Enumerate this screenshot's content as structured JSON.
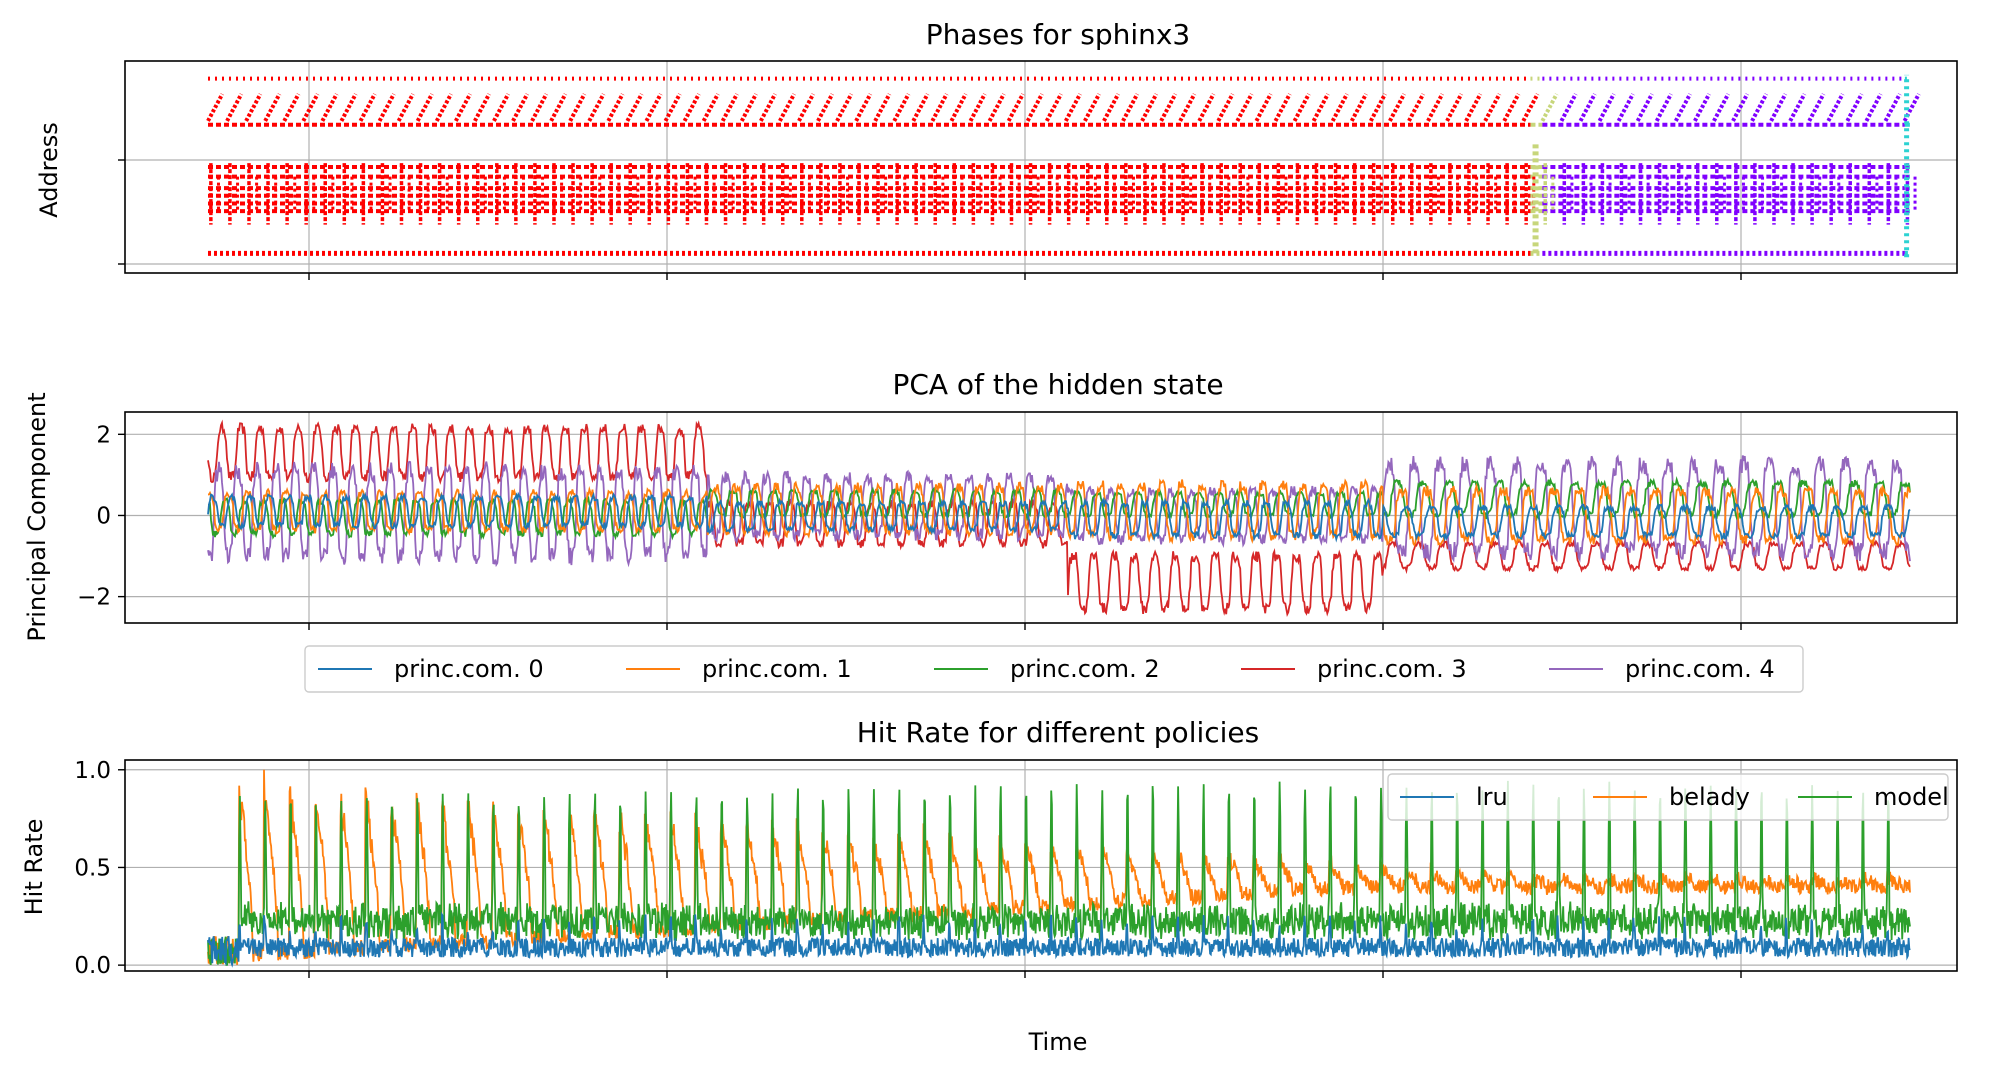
{
  "figure": {
    "xlabel": "Time"
  },
  "chart_data": [
    {
      "type": "scatter",
      "title": "Phases for sphinx3",
      "xlabel": "",
      "ylabel": "Address",
      "grid": true,
      "tick_labels_shown": false,
      "x_range": [
        0,
        1
      ],
      "phases": [
        {
          "color": "#ff0000",
          "x_range": [
            0.0,
            0.777
          ]
        },
        {
          "color": "#c7d67b",
          "x_range": [
            0.777,
            0.784
          ]
        },
        {
          "color": "#8000ff",
          "x_range": [
            0.784,
            0.997
          ]
        },
        {
          "color": "#2cd2d2",
          "x_range": [
            0.997,
            1.0
          ]
        }
      ],
      "address_bands": [
        0.05,
        0.27,
        0.31,
        0.35,
        0.39,
        0.45,
        0.5,
        0.72,
        0.96
      ]
    },
    {
      "type": "line",
      "title": "PCA of the hidden state",
      "xlabel": "",
      "ylabel": "Principal Component",
      "ylim": [
        -2.65,
        2.55
      ],
      "yticks": [
        "2",
        "0",
        "−2"
      ],
      "ytick_values": [
        2,
        0,
        -2
      ],
      "grid": true,
      "legend": {
        "placement": "below",
        "ncol": 5
      },
      "series": [
        {
          "name": "princ.com. 0",
          "color": "#1f77b4"
        },
        {
          "name": "princ.com. 1",
          "color": "#ff7f0e"
        },
        {
          "name": "princ.com. 2",
          "color": "#2ca02c"
        },
        {
          "name": "princ.com. 3",
          "color": "#d62728"
        },
        {
          "name": "princ.com. 4",
          "color": "#9467bd"
        }
      ],
      "segments": [
        {
          "x_range": [
            0.0,
            0.293
          ],
          "period": 0.0112,
          "values": {
            "princ.com. 0": [
              -0.25,
              0.45
            ],
            "princ.com. 1": [
              -0.35,
              0.55
            ],
            "princ.com. 2": [
              -0.45,
              0.35
            ],
            "princ.com. 3": [
              0.95,
              2.15
            ],
            "princ.com. 4": [
              -1.0,
              1.1
            ]
          }
        },
        {
          "x_range": [
            0.293,
            0.505
          ],
          "period": 0.0119,
          "values": {
            "princ.com. 0": [
              -0.35,
              0.3
            ],
            "princ.com. 1": [
              -0.4,
              0.7
            ],
            "princ.com. 2": [
              0.0,
              0.6
            ],
            "princ.com. 3": [
              -0.7,
              0.3
            ],
            "princ.com. 4": [
              -0.5,
              0.95
            ]
          }
        },
        {
          "x_range": [
            0.505,
            0.69
          ],
          "period": 0.0119,
          "values": {
            "princ.com. 0": [
              -0.5,
              0.3
            ],
            "princ.com. 1": [
              -0.5,
              0.75
            ],
            "princ.com. 2": [
              0.0,
              0.55
            ],
            "princ.com. 3": [
              -2.3,
              -1.0
            ],
            "princ.com. 4": [
              -0.6,
              0.6
            ]
          }
        },
        {
          "x_range": [
            0.69,
            1.0
          ],
          "period": 0.0149,
          "values": {
            "princ.com. 0": [
              -0.5,
              0.2
            ],
            "princ.com. 1": [
              -0.6,
              0.6
            ],
            "princ.com. 2": [
              0.0,
              0.8
            ],
            "princ.com. 3": [
              -1.3,
              -0.7
            ],
            "princ.com. 4": [
              -0.9,
              1.25
            ]
          }
        }
      ]
    },
    {
      "type": "line",
      "title": "Hit Rate for different policies",
      "xlabel": "",
      "ylabel": "Hit Rate",
      "ylim": [
        -0.03,
        1.05
      ],
      "yticks": [
        "0.0",
        "0.5",
        "1.0"
      ],
      "ytick_values": [
        0.0,
        0.5,
        1.0
      ],
      "grid": true,
      "legend": {
        "placement": "upper right",
        "ncol": 3
      },
      "series": [
        {
          "name": "lru",
          "color": "#1f77b4"
        },
        {
          "name": "belady",
          "color": "#ff7f0e"
        },
        {
          "name": "model",
          "color": "#2ca02c"
        }
      ],
      "spikes": {
        "period": 0.0149,
        "start": 0.018,
        "end": 1.0
      },
      "values": {
        "lru": {
          "base": [
            0.04,
            0.14
          ],
          "spike": 0.2
        },
        "belady": {
          "start_peak": 1.0,
          "end_peak": 0.45,
          "floor": [
            0.05,
            0.4
          ]
        },
        "model": {
          "start_peak": 0.85,
          "mid_peak": 0.93,
          "floor": [
            0.15,
            0.3
          ]
        }
      }
    }
  ]
}
